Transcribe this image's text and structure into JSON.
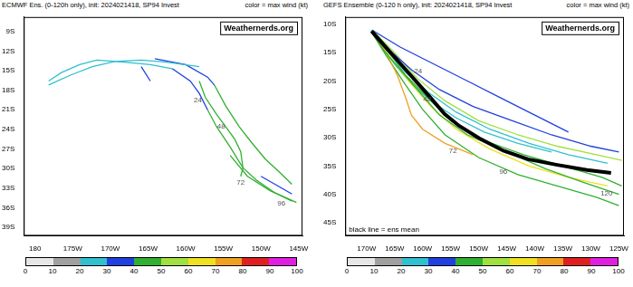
{
  "chart_data": [
    {
      "type": "line",
      "title": "ECMWF Ens. (0-120h only), init: 2024021418, SP94 Invest",
      "subtitle": "color = max wind (kt)",
      "credit": "Weathernerds.org",
      "grid": false,
      "xlim": [
        178.5,
        215.5
      ],
      "ylim": [
        -40.3,
        -6.8
      ],
      "xticks": [
        180,
        {
          "value": 185,
          "label": "175W"
        },
        {
          "value": 190,
          "label": "170W"
        },
        {
          "value": 195,
          "label": "165W"
        },
        {
          "value": 200,
          "label": "160W"
        },
        {
          "value": 205,
          "label": "155W"
        },
        {
          "value": 210,
          "label": "150W"
        },
        {
          "value": 215,
          "label": "145W"
        }
      ],
      "yticks": [
        {
          "value": -9,
          "label": "9S"
        },
        {
          "value": -12,
          "label": "12S"
        },
        {
          "value": -15,
          "label": "15S"
        },
        {
          "value": -18,
          "label": "18S"
        },
        {
          "value": -21,
          "label": "21S"
        },
        {
          "value": -24,
          "label": "24S"
        },
        {
          "value": -27,
          "label": "27S"
        },
        {
          "value": -30,
          "label": "30S"
        },
        {
          "value": -33,
          "label": "33S"
        },
        {
          "value": -36,
          "label": "36S"
        },
        {
          "value": -39,
          "label": "39S"
        }
      ],
      "series": [
        {
          "color": "#30c0d0",
          "x": [
            181.8,
            183.5,
            185.9,
            188.2,
            191.8,
            195.3,
            198.2
          ],
          "values": [
            -16.6,
            -15.3,
            -14.1,
            -13.4,
            -13.7,
            -14.1,
            -14.7
          ]
        },
        {
          "color": "#2040e0",
          "x": [
            198.2,
            200.6,
            201.8,
            202.9
          ],
          "values": [
            -14.7,
            -16.6,
            -18.5,
            -21.0
          ]
        },
        {
          "color": "#30b030",
          "x": [
            202.9,
            204.1,
            205.9,
            207.6,
            209.4,
            211.8,
            214.1
          ],
          "values": [
            -21.0,
            -23.6,
            -26.7,
            -29.9,
            -31.8,
            -33.7,
            -35.0
          ]
        },
        {
          "color": "#30c0d0",
          "x": [
            181.8,
            184.7,
            187.6,
            190.6,
            194.1,
            197.4,
            201.8
          ],
          "values": [
            -17.2,
            -15.7,
            -14.4,
            -13.6,
            -13.4,
            -13.7,
            -14.4
          ]
        },
        {
          "color": "#2040e0",
          "x": [
            195.9,
            200.0,
            202.9,
            203.8
          ],
          "values": [
            -13.2,
            -14.1,
            -16.0,
            -17.2
          ]
        },
        {
          "color": "#2040e0",
          "x": [
            194.1,
            195.3
          ],
          "values": [
            -14.4,
            -16.6
          ]
        },
        {
          "color": "#30b030",
          "x": [
            201.8,
            202.6,
            204.1,
            205.3,
            206.5,
            207.3,
            207.6,
            207.3
          ],
          "values": [
            -16.6,
            -19.1,
            -21.7,
            -23.6,
            -25.5,
            -27.4,
            -29.9,
            -31.2
          ]
        },
        {
          "color": "#30b030",
          "x": [
            203.8,
            205.3,
            207.1,
            208.8,
            210.6,
            212.4,
            214.1
          ],
          "values": [
            -17.2,
            -20.4,
            -23.6,
            -26.1,
            -28.6,
            -30.5,
            -32.4
          ]
        },
        {
          "color": "#2040e0",
          "x": [
            210.0,
            214.1
          ],
          "values": [
            -31.2,
            -33.9
          ]
        },
        {
          "color": "#30b030",
          "x": [
            205.9,
            208.2,
            211.2,
            214.7
          ],
          "values": [
            -28.0,
            -31.2,
            -33.4,
            -35.2
          ]
        }
      ],
      "annotations": [
        {
          "text": "24",
          "x": 201.6,
          "y": -19.5
        },
        {
          "text": "48",
          "x": 204.7,
          "y": -23.6
        },
        {
          "text": "72",
          "x": 207.3,
          "y": -32.2
        },
        {
          "text": "96",
          "x": 212.7,
          "y": -35.3
        }
      ],
      "colorbar": {
        "range": [
          0,
          100
        ],
        "ticks": [
          0,
          10,
          20,
          30,
          40,
          50,
          60,
          70,
          80,
          90,
          100
        ],
        "colors": [
          "#e6e6e6",
          "#a0a0a0",
          "#30c0d0",
          "#2040e0",
          "#30b030",
          "#a0e040",
          "#f0e020",
          "#f0a020",
          "#e02020",
          "#e020e0"
        ]
      }
    },
    {
      "type": "line",
      "title": "GEFS Ensemble (0-120 h only), init: 2024021418, SP94 Invest",
      "subtitle": "color = max wind (kt)",
      "credit": "Weathernerds.org",
      "caption": "black line = ens mean",
      "grid": false,
      "xlim": [
        186.2,
        235.9
      ],
      "ylim": [
        -47.3,
        -8.7
      ],
      "xticks": [
        {
          "value": 190,
          "label": "170W"
        },
        {
          "value": 195,
          "label": "165W"
        },
        {
          "value": 200,
          "label": "160W"
        },
        {
          "value": 205,
          "label": "155W"
        },
        {
          "value": 210,
          "label": "150W"
        },
        {
          "value": 215,
          "label": "145W"
        },
        {
          "value": 220,
          "label": "140W"
        },
        {
          "value": 225,
          "label": "135W"
        },
        {
          "value": 230,
          "label": "130W"
        },
        {
          "value": 235,
          "label": "125W"
        }
      ],
      "yticks": [
        {
          "value": -10,
          "label": "10S"
        },
        {
          "value": -15,
          "label": "15S"
        },
        {
          "value": -20,
          "label": "20S"
        },
        {
          "value": -25,
          "label": "25S"
        },
        {
          "value": -30,
          "label": "30S"
        },
        {
          "value": -35,
          "label": "35S"
        },
        {
          "value": -40,
          "label": "40S"
        },
        {
          "value": -45,
          "label": "45S"
        }
      ],
      "series": [
        {
          "color": "#000000",
          "line_style": "thick",
          "x": [
            190.9,
            193.5,
            196.1,
            198.7,
            201.3,
            203.9,
            206.5,
            210.1,
            214.4,
            218.8,
            224.0,
            229.3,
            233.6
          ],
          "values": [
            -11.2,
            -14.1,
            -17.0,
            -19.9,
            -22.8,
            -25.8,
            -27.9,
            -30.1,
            -32.3,
            -33.8,
            -34.8,
            -35.7,
            -36.2
          ]
        },
        {
          "color": "#2040e0",
          "x": [
            190.9,
            194.0,
            198.0,
            203.0,
            209.0,
            216.0,
            223.0,
            230.0,
            235.0
          ],
          "values": [
            -11.2,
            -14.5,
            -18.0,
            -21.5,
            -24.5,
            -27.0,
            -29.5,
            -31.5,
            -32.5
          ]
        },
        {
          "color": "#30c0d0",
          "x": [
            190.9,
            193.5,
            197.0,
            201.0,
            206.0,
            212.0,
            219.0,
            226.0,
            233.0
          ],
          "values": [
            -11.2,
            -14.5,
            -18.5,
            -22.0,
            -25.5,
            -28.5,
            -31.0,
            -33.0,
            -34.5
          ]
        },
        {
          "color": "#30b030",
          "x": [
            191.0,
            194.0,
            197.0,
            201.0,
            205.0,
            211.0,
            218.0,
            225.0,
            232.0,
            235.5
          ],
          "values": [
            -11.5,
            -15.0,
            -19.0,
            -23.0,
            -27.0,
            -30.5,
            -33.0,
            -35.0,
            -37.0,
            -38.5
          ]
        },
        {
          "color": "#30b030",
          "x": [
            191.0,
            193.0,
            196.0,
            199.5,
            203.0,
            208.0,
            215.0,
            222.0,
            229.0,
            235.0
          ],
          "values": [
            -11.5,
            -14.5,
            -18.0,
            -22.0,
            -26.0,
            -29.5,
            -32.5,
            -35.5,
            -38.0,
            -40.0
          ]
        },
        {
          "color": "#f0a020",
          "x": [
            191.0,
            193.5,
            195.5,
            197.0,
            198.0,
            200.0,
            204.0,
            209.0
          ],
          "values": [
            -11.3,
            -15.0,
            -19.0,
            -23.0,
            -26.0,
            -28.5,
            -31.0,
            -33.0
          ]
        },
        {
          "color": "#a0e040",
          "x": [
            191.0,
            195.0,
            199.0,
            204.0,
            210.0,
            217.0,
            224.0,
            231.0,
            235.5
          ],
          "values": [
            -11.0,
            -15.0,
            -19.5,
            -23.5,
            -27.0,
            -29.5,
            -31.5,
            -33.0,
            -34.0
          ]
        },
        {
          "color": "#f0e020",
          "x": [
            191.0,
            194.0,
            197.5,
            201.5,
            206.0,
            212.0,
            219.0,
            226.0,
            233.0
          ],
          "values": [
            -11.2,
            -15.5,
            -20.0,
            -24.5,
            -28.5,
            -32.0,
            -35.0,
            -37.0,
            -38.5
          ]
        },
        {
          "color": "#30b030",
          "x": [
            191.0,
            193.5,
            196.5,
            200.0,
            204.0,
            210.0,
            217.0,
            224.0,
            231.0,
            235.0
          ],
          "values": [
            -11.5,
            -15.5,
            -20.0,
            -25.0,
            -29.5,
            -33.5,
            -36.5,
            -38.5,
            -40.5,
            -42.0
          ]
        },
        {
          "color": "#2040e0",
          "x": [
            191.0,
            196.0,
            202.0,
            208.0,
            214.0,
            220.0,
            226.0
          ],
          "values": [
            -11.0,
            -14.0,
            -17.0,
            -20.0,
            -23.0,
            -26.0,
            -29.0
          ]
        },
        {
          "color": "#30c0d0",
          "x": [
            190.8,
            192.5,
            195.0,
            198.0,
            201.5,
            206.0,
            211.0,
            217.0,
            223.0
          ],
          "values": [
            -11.0,
            -13.5,
            -17.0,
            -20.5,
            -23.5,
            -26.5,
            -29.0,
            -31.0,
            -32.5
          ]
        }
      ],
      "annotations": [
        {
          "text": "24",
          "x": 199.2,
          "y": -18.3
        },
        {
          "text": "48",
          "x": 200.8,
          "y": -23.3
        },
        {
          "text": "72",
          "x": 205.4,
          "y": -32.3
        },
        {
          "text": "96",
          "x": 214.4,
          "y": -36.0
        },
        {
          "text": "120",
          "x": 232.8,
          "y": -39.9
        }
      ],
      "colorbar": {
        "range": [
          0,
          100
        ],
        "ticks": [
          0,
          10,
          20,
          30,
          40,
          50,
          60,
          70,
          80,
          90,
          100
        ],
        "colors": [
          "#e6e6e6",
          "#a0a0a0",
          "#30c0d0",
          "#2040e0",
          "#30b030",
          "#a0e040",
          "#f0e020",
          "#f0a020",
          "#e02020",
          "#e020e0"
        ]
      }
    }
  ]
}
